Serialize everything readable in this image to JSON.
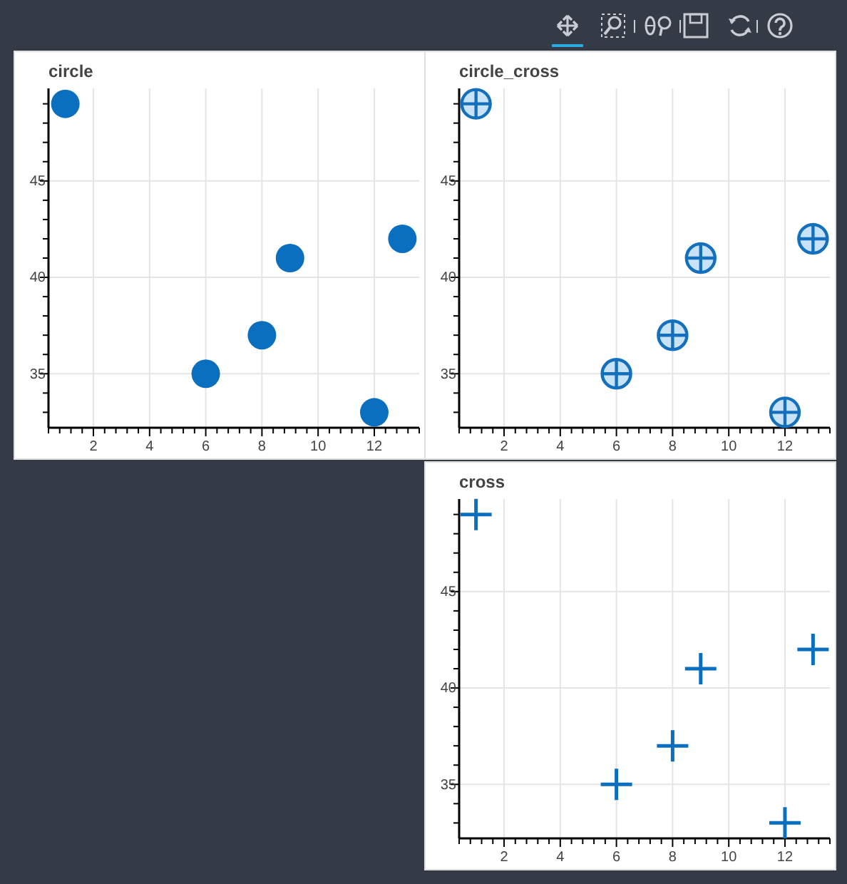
{
  "chart_data": [
    {
      "type": "scatter",
      "title": "circle",
      "marker": "circle",
      "grid": true,
      "x": [
        1,
        6,
        8,
        9,
        12,
        13
      ],
      "series": [
        {
          "color": "#0a6fbf",
          "values": [
            49,
            35,
            37,
            41,
            33,
            42
          ]
        }
      ],
      "xlim": [
        0.4,
        13.6
      ],
      "ylim": [
        32.2,
        49.8
      ],
      "xticks": [
        2,
        4,
        6,
        8,
        10,
        12
      ],
      "yticks": [
        35,
        40,
        45
      ]
    },
    {
      "type": "scatter",
      "title": "circle_cross",
      "grid": true,
      "x": [
        1,
        6,
        8,
        9,
        12,
        13
      ],
      "series": [
        {
          "color": "#1470bd",
          "values": [
            49,
            35,
            37,
            41,
            33,
            42
          ]
        }
      ],
      "xlim": [
        0.4,
        13.6
      ],
      "ylim": [
        32.2,
        49.8
      ],
      "xticks": [
        2,
        4,
        6,
        8,
        10,
        12
      ],
      "yticks": [
        35,
        40,
        45
      ]
    },
    {
      "type": "scatter",
      "title": "cross",
      "marker": "cross",
      "grid": true,
      "x": [
        1,
        6,
        8,
        9,
        12,
        13
      ],
      "series": [
        {
          "color": "#0a6fbf",
          "values": [
            49,
            35,
            37,
            41,
            33,
            42
          ]
        }
      ],
      "xlim": [
        0.4,
        13.6
      ],
      "ylim": [
        32.2,
        49.8
      ],
      "xticks": [
        2,
        4,
        6,
        8,
        10,
        12
      ],
      "yticks": [
        35,
        40,
        45
      ]
    }
  ]
}
